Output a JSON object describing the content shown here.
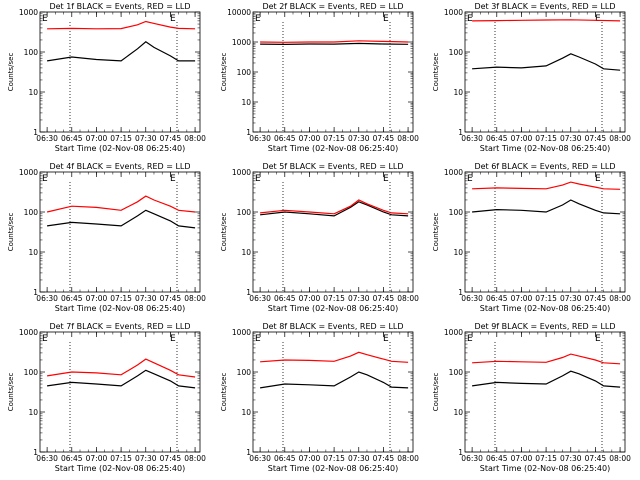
{
  "chart_data": [
    {
      "type": "line",
      "title": "Det 1f BLACK = Events, RED = LLD",
      "ylabel": "Counts/sec",
      "xlabel": "Start Time (02-Nov-08 06:25:40)",
      "yscale": "log",
      "ylim": [
        1,
        1000
      ],
      "x_ticks": [
        "06:30",
        "06:45",
        "07:00",
        "07:15",
        "07:30",
        "07:45",
        "08:00"
      ],
      "y_ticks": [
        "1",
        "10",
        "100",
        "1000"
      ],
      "markers": [
        "E",
        "E"
      ],
      "series": [
        {
          "color": "#000000",
          "x": [
            "06:30",
            "06:45",
            "07:00",
            "07:15",
            "07:25",
            "07:30",
            "07:35",
            "07:45",
            "07:50",
            "08:00"
          ],
          "values": [
            60,
            75,
            65,
            60,
            120,
            180,
            130,
            80,
            60,
            60
          ]
        },
        {
          "color": "#ff0000",
          "x": [
            "06:30",
            "06:45",
            "07:00",
            "07:15",
            "07:25",
            "07:30",
            "07:35",
            "07:45",
            "07:50",
            "08:00"
          ],
          "values": [
            380,
            390,
            380,
            385,
            480,
            580,
            520,
            420,
            390,
            380
          ]
        }
      ]
    },
    {
      "type": "line",
      "title": "Det 2f BLACK = Events, RED = LLD",
      "ylabel": "Counts/sec",
      "xlabel": "Start Time (02-Nov-08 06:25:40)",
      "yscale": "log",
      "ylim": [
        1,
        10000
      ],
      "x_ticks": [
        "06:30",
        "06:45",
        "07:00",
        "07:15",
        "07:30",
        "07:45",
        "08:00"
      ],
      "y_ticks": [
        "1",
        "10",
        "100",
        "1000",
        "10000"
      ],
      "markers": [
        "E",
        "E"
      ],
      "series": [
        {
          "color": "#000000",
          "x": [
            "06:30",
            "06:45",
            "07:00",
            "07:15",
            "07:30",
            "07:45",
            "08:00"
          ],
          "values": [
            850,
            830,
            860,
            850,
            900,
            860,
            840
          ]
        },
        {
          "color": "#ff0000",
          "x": [
            "06:30",
            "06:45",
            "07:00",
            "07:15",
            "07:30",
            "07:45",
            "08:00"
          ],
          "values": [
            1000,
            980,
            1000,
            1000,
            1100,
            1050,
            1000
          ]
        }
      ]
    },
    {
      "type": "line",
      "title": "Det 3f BLACK = Events, RED = LLD",
      "ylabel": "Counts/sec",
      "xlabel": "Start Time (02-Nov-08 06:25:40)",
      "yscale": "log",
      "ylim": [
        1,
        1000
      ],
      "x_ticks": [
        "06:30",
        "06:45",
        "07:00",
        "07:15",
        "07:30",
        "07:45",
        "08:00"
      ],
      "y_ticks": [
        "1",
        "10",
        "100",
        "1000"
      ],
      "markers": [
        "E",
        "E"
      ],
      "series": [
        {
          "color": "#000000",
          "x": [
            "06:30",
            "06:45",
            "07:00",
            "07:15",
            "07:25",
            "07:30",
            "07:35",
            "07:45",
            "07:50",
            "08:00"
          ],
          "values": [
            38,
            42,
            40,
            45,
            70,
            90,
            75,
            50,
            38,
            35
          ]
        },
        {
          "color": "#ff0000",
          "x": [
            "06:30",
            "06:45",
            "07:00",
            "07:15",
            "07:30",
            "07:45",
            "08:00"
          ],
          "values": [
            600,
            610,
            620,
            630,
            640,
            620,
            600
          ]
        }
      ]
    },
    {
      "type": "line",
      "title": "Det 4f BLACK = Events, RED = LLD",
      "ylabel": "Counts/sec",
      "xlabel": "Start Time (02-Nov-08 06:25:40)",
      "yscale": "log",
      "ylim": [
        1,
        1000
      ],
      "x_ticks": [
        "06:30",
        "06:45",
        "07:00",
        "07:15",
        "07:30",
        "07:45",
        "08:00"
      ],
      "y_ticks": [
        "1",
        "10",
        "100",
        "1000"
      ],
      "markers": [
        "E",
        "E"
      ],
      "series": [
        {
          "color": "#000000",
          "x": [
            "06:30",
            "06:45",
            "07:00",
            "07:15",
            "07:25",
            "07:30",
            "07:35",
            "07:45",
            "07:50",
            "08:00"
          ],
          "values": [
            45,
            55,
            50,
            45,
            80,
            110,
            90,
            60,
            45,
            40
          ]
        },
        {
          "color": "#ff0000",
          "x": [
            "06:30",
            "06:45",
            "07:00",
            "07:15",
            "07:25",
            "07:30",
            "07:35",
            "07:45",
            "07:50",
            "08:00"
          ],
          "values": [
            100,
            140,
            130,
            110,
            180,
            250,
            200,
            140,
            110,
            100
          ]
        }
      ]
    },
    {
      "type": "line",
      "title": "Det 5f BLACK = Events, RED = LLD",
      "ylabel": "Counts/sec",
      "xlabel": "Start Time (02-Nov-08 06:25:40)",
      "yscale": "log",
      "ylim": [
        1,
        1000
      ],
      "x_ticks": [
        "06:30",
        "06:45",
        "07:00",
        "07:15",
        "07:30",
        "07:45",
        "08:00"
      ],
      "y_ticks": [
        "1",
        "10",
        "100",
        "1000"
      ],
      "markers": [
        "E",
        "E"
      ],
      "series": [
        {
          "color": "#000000",
          "x": [
            "06:30",
            "06:45",
            "07:00",
            "07:15",
            "07:25",
            "07:30",
            "07:35",
            "07:45",
            "07:50",
            "08:00"
          ],
          "values": [
            85,
            100,
            90,
            80,
            130,
            180,
            150,
            100,
            85,
            80
          ]
        },
        {
          "color": "#ff0000",
          "x": [
            "06:30",
            "06:45",
            "07:00",
            "07:15",
            "07:25",
            "07:30",
            "07:35",
            "07:45",
            "07:50",
            "08:00"
          ],
          "values": [
            95,
            110,
            100,
            90,
            140,
            200,
            160,
            110,
            95,
            90
          ]
        }
      ]
    },
    {
      "type": "line",
      "title": "Det 6f BLACK = Events, RED = LLD",
      "ylabel": "Counts/sec",
      "xlabel": "Start Time (02-Nov-08 06:25:40)",
      "yscale": "log",
      "ylim": [
        1,
        1000
      ],
      "x_ticks": [
        "06:30",
        "06:45",
        "07:00",
        "07:15",
        "07:30",
        "07:45",
        "08:00"
      ],
      "y_ticks": [
        "1",
        "10",
        "100",
        "1000"
      ],
      "markers": [
        "E",
        "E"
      ],
      "series": [
        {
          "color": "#000000",
          "x": [
            "06:30",
            "06:45",
            "07:00",
            "07:15",
            "07:25",
            "07:30",
            "07:35",
            "07:45",
            "07:50",
            "08:00"
          ],
          "values": [
            100,
            115,
            110,
            100,
            150,
            200,
            160,
            110,
            95,
            90
          ]
        },
        {
          "color": "#ff0000",
          "x": [
            "06:30",
            "06:45",
            "07:00",
            "07:15",
            "07:25",
            "07:30",
            "07:35",
            "07:45",
            "07:50",
            "08:00"
          ],
          "values": [
            380,
            400,
            390,
            380,
            470,
            560,
            500,
            420,
            380,
            370
          ]
        }
      ]
    },
    {
      "type": "line",
      "title": "Det 7f BLACK = Events, RED = LLD",
      "ylabel": "Counts/sec",
      "xlabel": "Start Time (02-Nov-08 06:25:40)",
      "yscale": "log",
      "ylim": [
        1,
        1000
      ],
      "x_ticks": [
        "06:30",
        "06:45",
        "07:00",
        "07:15",
        "07:30",
        "07:45",
        "08:00"
      ],
      "y_ticks": [
        "1",
        "10",
        "100",
        "1000"
      ],
      "markers": [
        "E",
        "E"
      ],
      "series": [
        {
          "color": "#000000",
          "x": [
            "06:30",
            "06:45",
            "07:00",
            "07:15",
            "07:25",
            "07:30",
            "07:35",
            "07:45",
            "07:50",
            "08:00"
          ],
          "values": [
            45,
            55,
            50,
            45,
            80,
            110,
            90,
            60,
            45,
            40
          ]
        },
        {
          "color": "#ff0000",
          "x": [
            "06:30",
            "06:45",
            "07:00",
            "07:15",
            "07:25",
            "07:30",
            "07:35",
            "07:45",
            "07:50",
            "08:00"
          ],
          "values": [
            80,
            100,
            95,
            85,
            150,
            210,
            170,
            110,
            85,
            75
          ]
        }
      ]
    },
    {
      "type": "line",
      "title": "Det 8f BLACK = Events, RED = LLD",
      "ylabel": "Counts/sec",
      "xlabel": "Start Time (02-Nov-08 06:25:40)",
      "yscale": "log",
      "ylim": [
        1,
        1000
      ],
      "x_ticks": [
        "06:30",
        "06:45",
        "07:00",
        "07:15",
        "07:30",
        "07:45",
        "08:00"
      ],
      "y_ticks": [
        "1",
        "10",
        "100",
        "1000"
      ],
      "markers": [
        "E",
        "E"
      ],
      "series": [
        {
          "color": "#000000",
          "x": [
            "06:30",
            "06:45",
            "07:00",
            "07:15",
            "07:25",
            "07:30",
            "07:35",
            "07:45",
            "07:50",
            "08:00"
          ],
          "values": [
            40,
            50,
            48,
            45,
            75,
            100,
            85,
            55,
            42,
            40
          ]
        },
        {
          "color": "#ff0000",
          "x": [
            "06:30",
            "06:45",
            "07:00",
            "07:15",
            "07:25",
            "07:30",
            "07:35",
            "07:45",
            "07:50",
            "08:00"
          ],
          "values": [
            180,
            200,
            195,
            185,
            250,
            310,
            270,
            210,
            185,
            175
          ]
        }
      ]
    },
    {
      "type": "line",
      "title": "Det 9f BLACK = Events, RED = LLD",
      "ylabel": "Counts/sec",
      "xlabel": "Start Time (02-Nov-08 06:25:40)",
      "yscale": "log",
      "ylim": [
        1,
        1000
      ],
      "x_ticks": [
        "06:30",
        "06:45",
        "07:00",
        "07:15",
        "07:30",
        "07:45",
        "08:00"
      ],
      "y_ticks": [
        "1",
        "10",
        "100",
        "1000"
      ],
      "markers": [
        "E",
        "E"
      ],
      "series": [
        {
          "color": "#000000",
          "x": [
            "06:30",
            "06:45",
            "07:00",
            "07:15",
            "07:25",
            "07:30",
            "07:35",
            "07:45",
            "07:50",
            "08:00"
          ],
          "values": [
            45,
            55,
            52,
            50,
            80,
            105,
            90,
            60,
            45,
            42
          ]
        },
        {
          "color": "#ff0000",
          "x": [
            "06:30",
            "06:45",
            "07:00",
            "07:15",
            "07:25",
            "07:30",
            "07:35",
            "07:45",
            "07:50",
            "08:00"
          ],
          "values": [
            170,
            185,
            180,
            175,
            230,
            280,
            250,
            200,
            170,
            160
          ]
        }
      ]
    }
  ]
}
